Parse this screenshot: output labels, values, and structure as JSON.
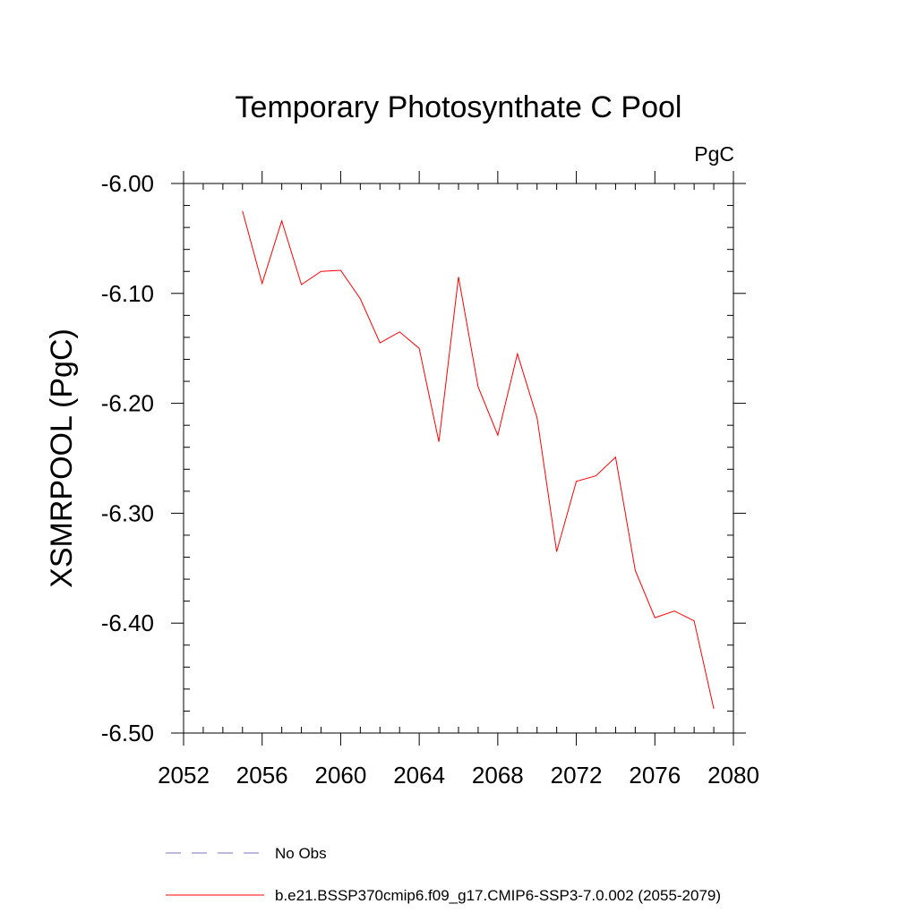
{
  "chart_data": {
    "type": "line",
    "title": "Temporary Photosynthate C Pool",
    "units_label": "PgC",
    "xlabel": "",
    "ylabel": "XSMRPOOL  (PgC)",
    "xlim": [
      2052,
      2080
    ],
    "ylim": [
      -6.5,
      -6.0
    ],
    "x_ticks": [
      2052,
      2056,
      2060,
      2064,
      2068,
      2072,
      2076,
      2080
    ],
    "x_tick_labels": [
      "2052",
      "2056",
      "2060",
      "2064",
      "2068",
      "2072",
      "2076",
      "2080"
    ],
    "y_ticks": [
      -6.0,
      -6.1,
      -6.2,
      -6.3,
      -6.4,
      -6.5
    ],
    "y_tick_labels": [
      "-6.00",
      "-6.10",
      "-6.20",
      "-6.30",
      "-6.40",
      "-6.50"
    ],
    "x_minor_step": 1,
    "y_minor_step": 0.02,
    "grid": false,
    "series": [
      {
        "name": "b.e21.BSSP370cmip6.f09_g17.CMIP6-SSP3-7.0.002 (2055-2079)",
        "color": "#ff0000",
        "x": [
          2055,
          2056,
          2057,
          2058,
          2059,
          2060,
          2061,
          2062,
          2063,
          2064,
          2065,
          2066,
          2067,
          2068,
          2069,
          2070,
          2071,
          2072,
          2073,
          2074,
          2075,
          2076,
          2077,
          2078,
          2079
        ],
        "y": [
          -6.025,
          -6.091,
          -6.034,
          -6.092,
          -6.08,
          -6.079,
          -6.105,
          -6.145,
          -6.135,
          -6.15,
          -6.235,
          -6.085,
          -6.185,
          -6.229,
          -6.155,
          -6.213,
          -6.335,
          -6.271,
          -6.266,
          -6.249,
          -6.352,
          -6.395,
          -6.389,
          -6.398,
          -6.478
        ]
      }
    ],
    "legend": {
      "placement": "bottom",
      "entries": [
        {
          "label": "No Obs",
          "color": "#7b72c4",
          "style": "dashed"
        },
        {
          "label": "b.e21.BSSP370cmip6.f09_g17.CMIP6-SSP3-7.0.002 (2055-2079)",
          "color": "#ff0000",
          "style": "solid"
        }
      ]
    }
  }
}
